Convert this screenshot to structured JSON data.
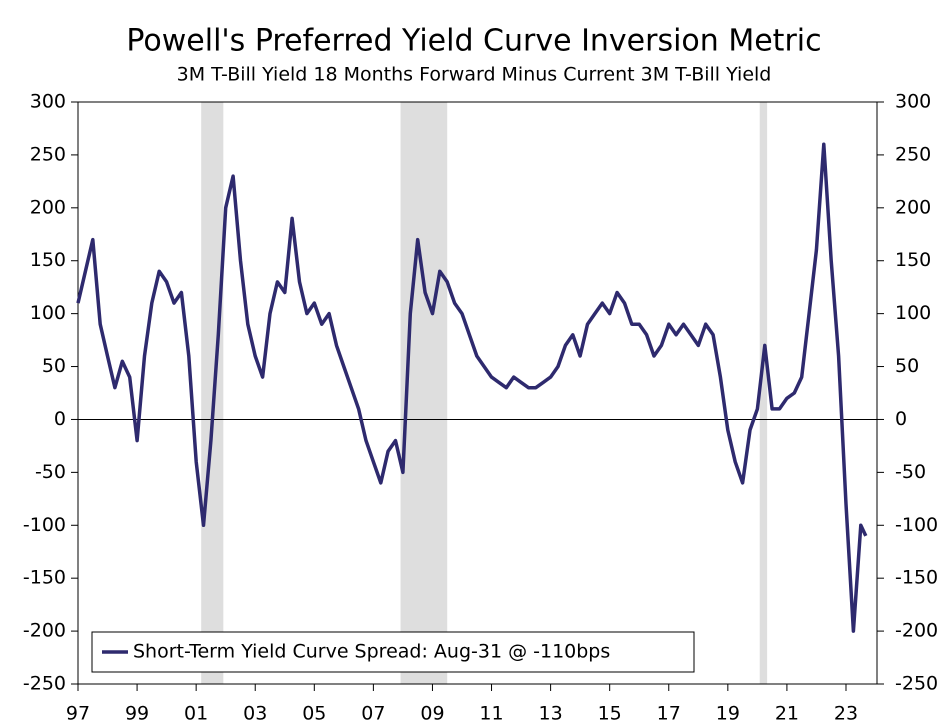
{
  "chart_data": {
    "type": "line",
    "title": "Powell's Preferred Yield Curve Inversion Metric",
    "subtitle": "3M T-Bill Yield 18 Months Forward Minus Current 3M T-Bill Yield",
    "x": [
      1997.0,
      1997.25,
      1997.5,
      1997.75,
      1998.0,
      1998.25,
      1998.5,
      1998.75,
      1999.0,
      1999.25,
      1999.5,
      1999.75,
      2000.0,
      2000.25,
      2000.5,
      2000.75,
      2001.0,
      2001.25,
      2001.5,
      2001.75,
      2002.0,
      2002.25,
      2002.5,
      2002.75,
      2003.0,
      2003.25,
      2003.5,
      2003.75,
      2004.0,
      2004.25,
      2004.5,
      2004.75,
      2005.0,
      2005.25,
      2005.5,
      2005.75,
      2006.0,
      2006.25,
      2006.5,
      2006.75,
      2007.0,
      2007.25,
      2007.5,
      2007.75,
      2008.0,
      2008.25,
      2008.5,
      2008.75,
      2009.0,
      2009.25,
      2009.5,
      2009.75,
      2010.0,
      2010.25,
      2010.5,
      2010.75,
      2011.0,
      2011.25,
      2011.5,
      2011.75,
      2012.0,
      2012.25,
      2012.5,
      2012.75,
      2013.0,
      2013.25,
      2013.5,
      2013.75,
      2014.0,
      2014.25,
      2014.5,
      2014.75,
      2015.0,
      2015.25,
      2015.5,
      2015.75,
      2016.0,
      2016.25,
      2016.5,
      2016.75,
      2017.0,
      2017.25,
      2017.5,
      2017.75,
      2018.0,
      2018.25,
      2018.5,
      2018.75,
      2019.0,
      2019.25,
      2019.5,
      2019.75,
      2020.0,
      2020.25,
      2020.5,
      2020.75,
      2021.0,
      2021.25,
      2021.5,
      2021.75,
      2022.0,
      2022.25,
      2022.5,
      2022.75,
      2023.0,
      2023.25,
      2023.5,
      2023.67
    ],
    "series": [
      {
        "name": "Short-Term Yield Curve Spread: Aug-31 @ -110bps",
        "color": "#2e2a6e",
        "values": [
          110,
          140,
          170,
          90,
          60,
          30,
          55,
          40,
          -20,
          60,
          110,
          140,
          130,
          110,
          120,
          60,
          -40,
          -100,
          -20,
          80,
          200,
          230,
          150,
          90,
          60,
          40,
          100,
          130,
          120,
          190,
          130,
          100,
          110,
          90,
          100,
          70,
          50,
          30,
          10,
          -20,
          -40,
          -60,
          -30,
          -20,
          -50,
          100,
          170,
          120,
          100,
          140,
          130,
          110,
          100,
          80,
          60,
          50,
          40,
          35,
          30,
          40,
          35,
          30,
          30,
          35,
          40,
          50,
          70,
          80,
          60,
          90,
          100,
          110,
          100,
          120,
          110,
          90,
          90,
          80,
          60,
          70,
          90,
          80,
          90,
          80,
          70,
          90,
          80,
          40,
          -10,
          -40,
          -60,
          -10,
          10,
          70,
          10,
          10,
          20,
          25,
          40,
          100,
          160,
          260,
          150,
          60,
          -80,
          -200,
          -100,
          -110
        ]
      }
    ],
    "shaded_regions": [
      [
        2001.17,
        2001.92
      ],
      [
        2007.92,
        2009.5
      ],
      [
        2020.08,
        2020.33
      ]
    ],
    "shade_color": "#dedede",
    "xlim": [
      1997,
      2024.05
    ],
    "xticks": [
      {
        "value": 1997,
        "label": "97"
      },
      {
        "value": 1999,
        "label": "99"
      },
      {
        "value": 2001,
        "label": "01"
      },
      {
        "value": 2003,
        "label": "03"
      },
      {
        "value": 2005,
        "label": "05"
      },
      {
        "value": 2007,
        "label": "07"
      },
      {
        "value": 2009,
        "label": "09"
      },
      {
        "value": 2011,
        "label": "11"
      },
      {
        "value": 2013,
        "label": "13"
      },
      {
        "value": 2015,
        "label": "15"
      },
      {
        "value": 2017,
        "label": "17"
      },
      {
        "value": 2019,
        "label": "19"
      },
      {
        "value": 2021,
        "label": "21"
      },
      {
        "value": 2023,
        "label": "23"
      }
    ],
    "ylim": [
      -250,
      300
    ],
    "yticks": [
      -250,
      -200,
      -150,
      -100,
      -50,
      0,
      50,
      100,
      150,
      200,
      250,
      300
    ],
    "y2lim": [
      -250,
      300
    ],
    "y2ticks": [
      -250,
      -200,
      -150,
      -100,
      -50,
      0,
      50,
      100,
      150,
      200,
      250,
      300
    ],
    "legend": "lower left"
  }
}
